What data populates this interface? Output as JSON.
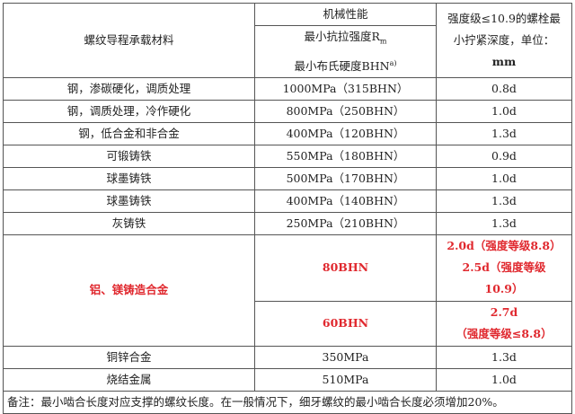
{
  "header": {
    "material": "螺纹导程承载材料",
    "mechanical": "机械性能",
    "tensile": "最小抗拉强度R",
    "tensile_sub": "m",
    "hardness": "最小布氏硬度BHN",
    "hardness_sup": "a)",
    "depth_lines": [
      "强度级≤10.9的螺栓最",
      "小拧紧深度，单位：",
      "mm"
    ]
  },
  "rows": [
    {
      "material": "钢，渗碳硬化，调质处理",
      "property": "1000MPa（315BHN）",
      "depth": "0.8d"
    },
    {
      "material": "钢，调质处理，冷作硬化",
      "property": "800MPa（250BHN）",
      "depth": "1.0d"
    },
    {
      "material": "钢，低合金和非合金",
      "property": "400MPa（120BHN）",
      "depth": "1.3d"
    },
    {
      "material": "可锻铸铁",
      "property": "550MPa（180BHN）",
      "depth": "0.9d"
    },
    {
      "material": "球墨铸铁",
      "property": "500MPa（170BHN）",
      "depth": "1.0d"
    },
    {
      "material": "球墨铸铁",
      "property": "400MPa（140BHN）",
      "depth": "1.3d"
    },
    {
      "material": "灰铸铁",
      "property": "250MPa（210BHN）",
      "depth": "1.3d"
    }
  ],
  "aluminum": {
    "material": "铝、镁铸造合金",
    "sub": [
      {
        "property": "80BHN",
        "depth_lines": [
          "2.0d（强度等级8.8）",
          "2.5d（强度等级",
          "10.9）"
        ]
      },
      {
        "property": "60BHN",
        "depth_lines": [
          "2.7d",
          "（强度等级≤8.8）"
        ]
      }
    ]
  },
  "rows2": [
    {
      "material": "铜锌合金",
      "property": "350MPa",
      "depth": "1.3d"
    },
    {
      "material": "烧结金属",
      "property": "510MPa",
      "depth": "1.0d"
    }
  ],
  "note": "备注：最小啮合长度对应支撑的螺纹长度。在一般情况下，细牙螺纹的最小啮合长度必须增加20%。",
  "colors": {
    "highlight": "#e0282e"
  }
}
